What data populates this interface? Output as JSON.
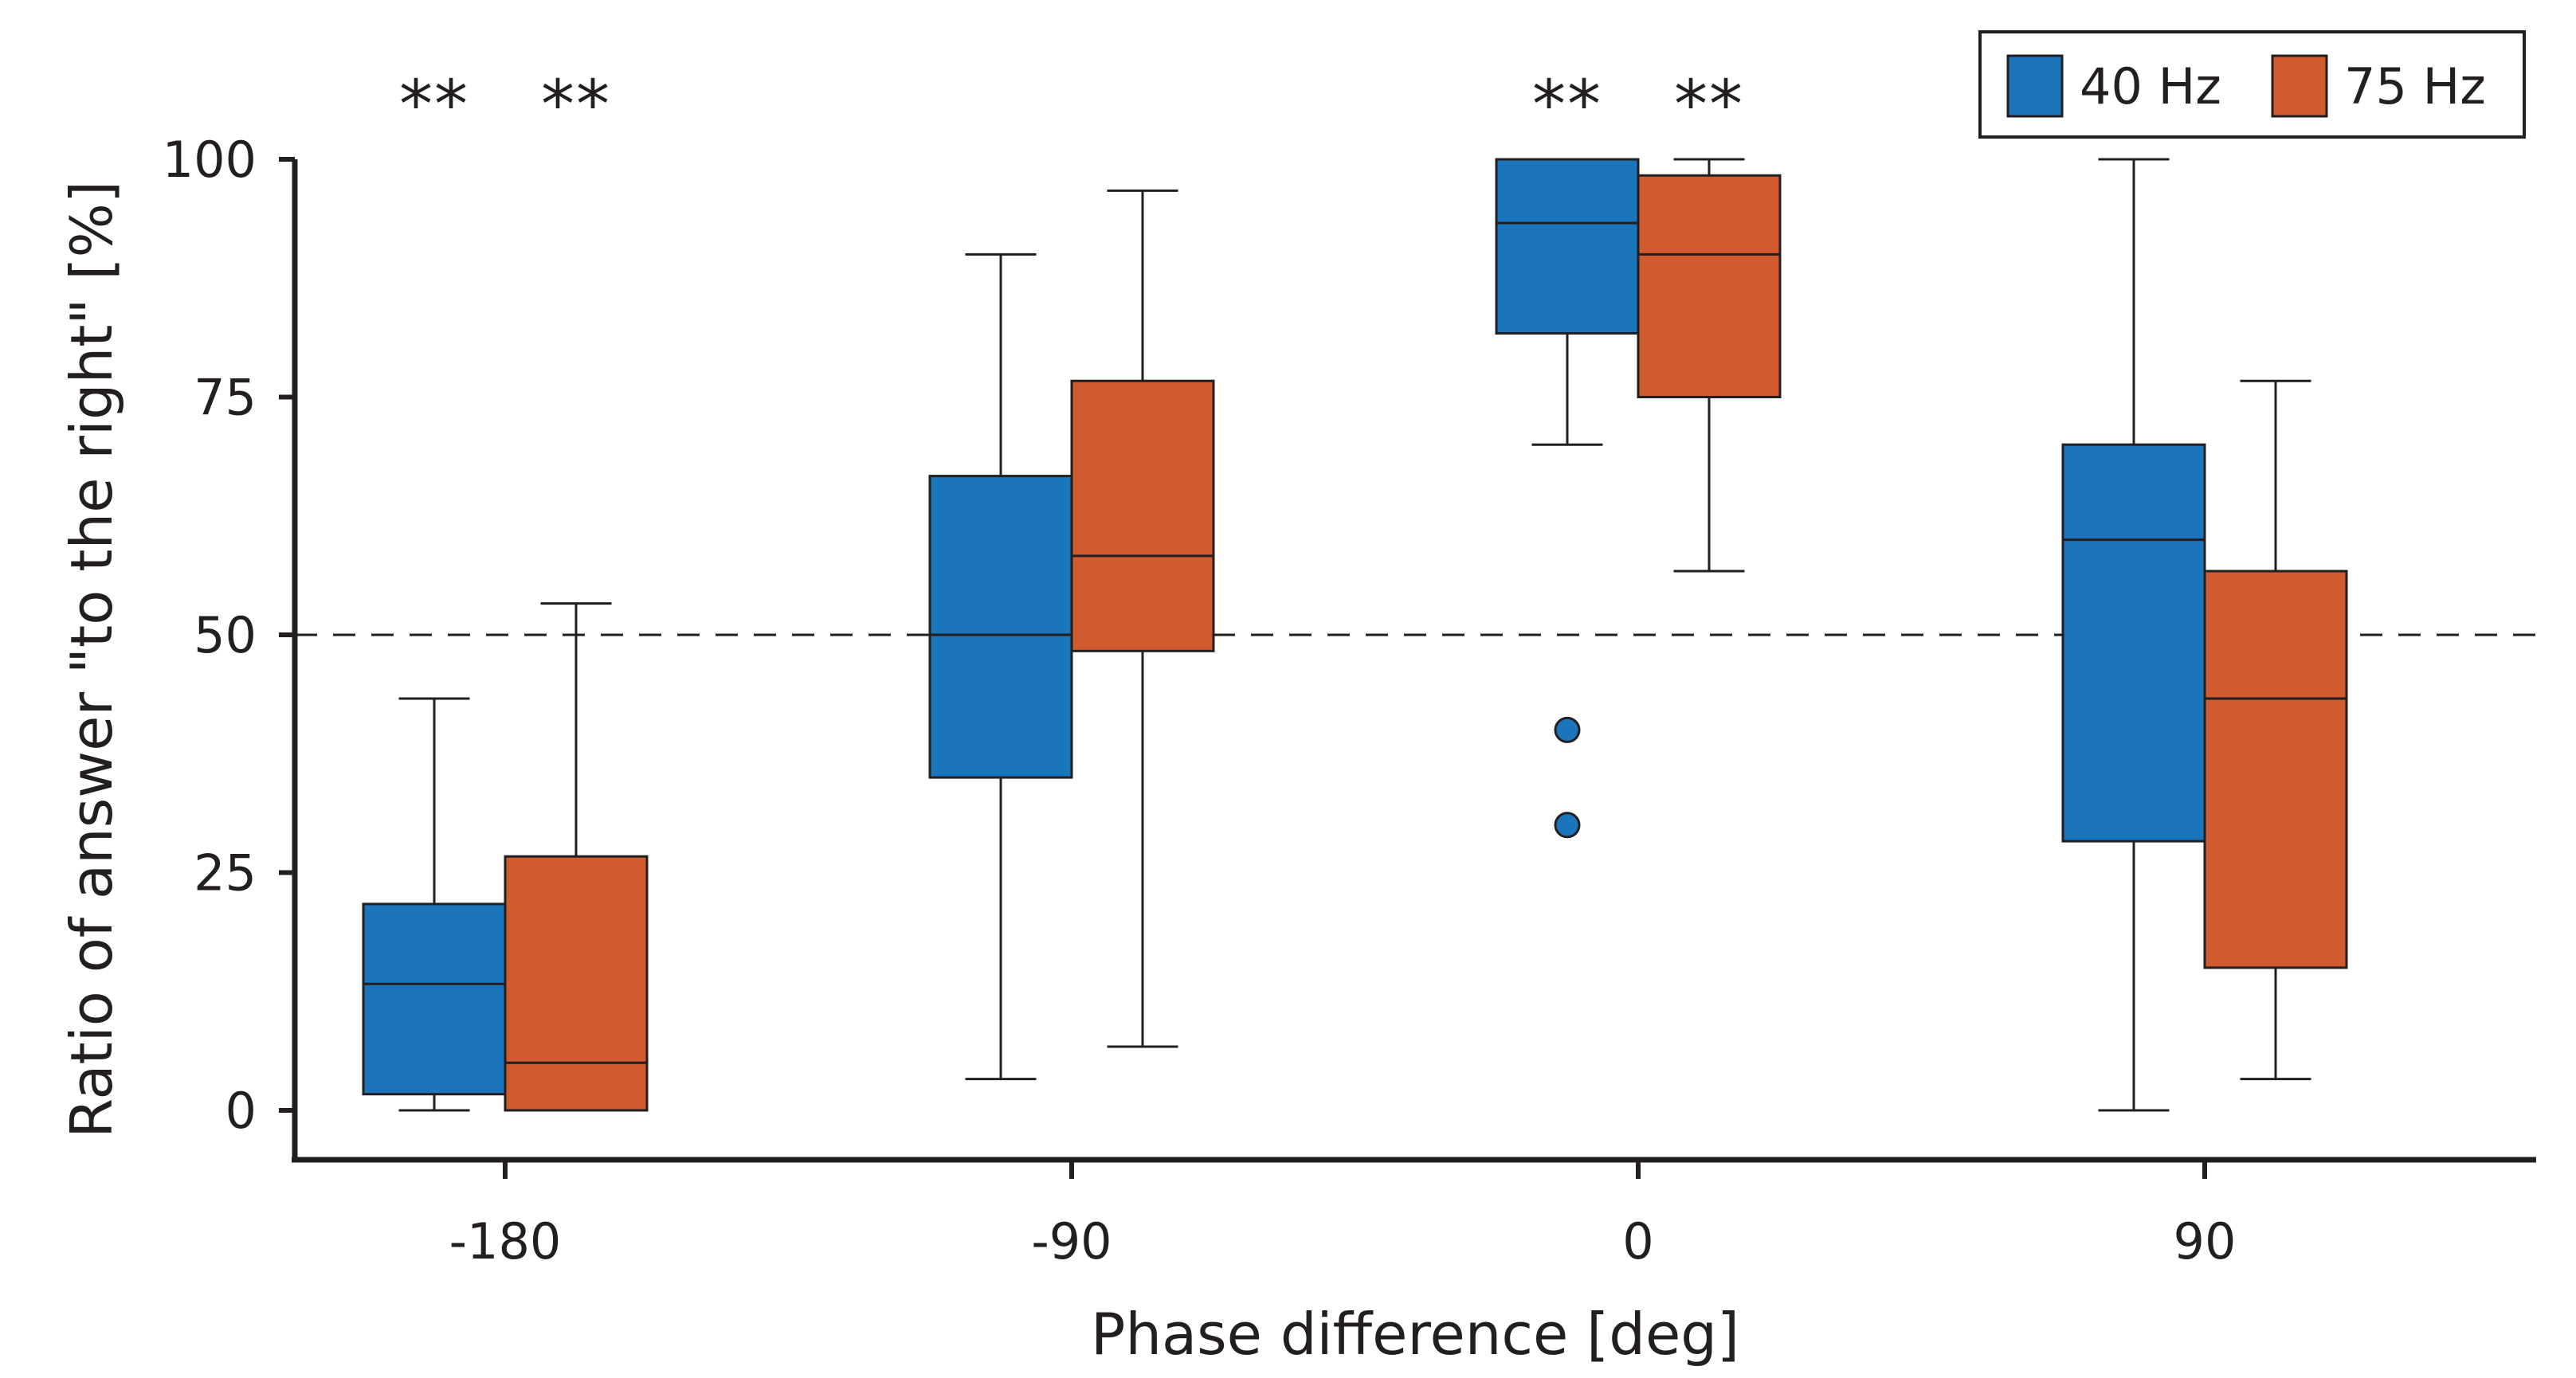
{
  "chart_data": {
    "type": "box",
    "title": "",
    "xlabel": "Phase difference [deg]",
    "ylabel": "Ratio of answer \"to the right\" [%]",
    "categories": [
      "-180",
      "-90",
      "0",
      "90"
    ],
    "ylim": [
      -5,
      105
    ],
    "yticks": [
      "0",
      "25",
      "50",
      "75",
      "100"
    ],
    "ytick_values": [
      0,
      25,
      50,
      75,
      100
    ],
    "reference_line": 50,
    "legend_position": "top-right",
    "series": [
      {
        "name": "40 Hz",
        "color": "#1b75bb",
        "boxes": [
          {
            "category": "-180",
            "whisker_low": 0,
            "q1": 1.7,
            "median": 13.3,
            "q3": 21.7,
            "whisker_high": 43.3,
            "outliers": []
          },
          {
            "category": "-90",
            "whisker_low": 3.3,
            "q1": 35.0,
            "median": 50.0,
            "q3": 66.7,
            "whisker_high": 90.0,
            "outliers": []
          },
          {
            "category": "0",
            "whisker_low": 70.0,
            "q1": 81.7,
            "median": 93.3,
            "q3": 100.0,
            "whisker_high": 100.0,
            "outliers": [
              40.0,
              30.0
            ]
          },
          {
            "category": "90",
            "whisker_low": 0,
            "q1": 28.3,
            "median": 60.0,
            "q3": 70.0,
            "whisker_high": 100.0,
            "outliers": []
          }
        ]
      },
      {
        "name": "75 Hz",
        "color": "#d25a2f",
        "boxes": [
          {
            "category": "-180",
            "whisker_low": 0,
            "q1": 0,
            "median": 5.0,
            "q3": 26.7,
            "whisker_high": 53.3,
            "outliers": []
          },
          {
            "category": "-90",
            "whisker_low": 6.7,
            "q1": 48.3,
            "median": 58.3,
            "q3": 76.7,
            "whisker_high": 96.7,
            "outliers": []
          },
          {
            "category": "0",
            "whisker_low": 56.7,
            "q1": 75.0,
            "median": 90.0,
            "q3": 98.3,
            "whisker_high": 100.0,
            "outliers": []
          },
          {
            "category": "90",
            "whisker_low": 3.3,
            "q1": 15.0,
            "median": 43.3,
            "q3": 56.7,
            "whisker_high": 76.7,
            "outliers": []
          }
        ]
      }
    ],
    "annotations": [
      {
        "text": "**",
        "category": "-180",
        "series": "40 Hz"
      },
      {
        "text": "**",
        "category": "-180",
        "series": "75 Hz"
      },
      {
        "text": "**",
        "category": "0",
        "series": "40 Hz"
      },
      {
        "text": "**",
        "category": "0",
        "series": "75 Hz"
      }
    ]
  }
}
